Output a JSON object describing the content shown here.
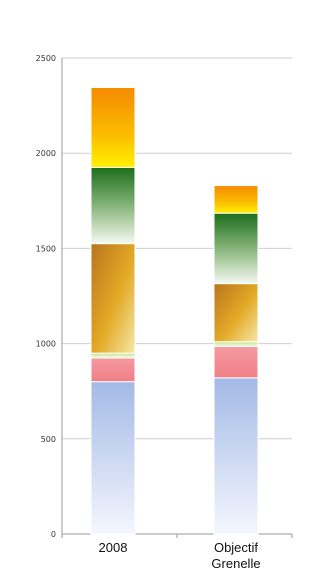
{
  "chart_data": {
    "type": "bar",
    "stacked": true,
    "title": "",
    "xlabel": "",
    "ylabel": "",
    "ylim": [
      0,
      2500
    ],
    "yticks": [
      0,
      500,
      1000,
      1500,
      2000,
      2500
    ],
    "grid": true,
    "legend": "none",
    "categories": [
      [
        "2008"
      ],
      [
        "Objectif",
        "Grenelle"
      ]
    ],
    "series": [
      {
        "values": [
          800,
          820
        ],
        "color": "#a9bce6"
      },
      {
        "values": [
          125,
          165
        ],
        "color": "#f4888f"
      },
      {
        "values": [
          25,
          25
        ],
        "color": "#d9ecb0"
      },
      {
        "values": [
          575,
          305
        ],
        "color": "#d9a82a"
      },
      {
        "values": [
          400,
          370
        ],
        "color": "#2f8a2f"
      },
      {
        "values": [
          420,
          145
        ],
        "color": "#f7a800"
      }
    ]
  }
}
